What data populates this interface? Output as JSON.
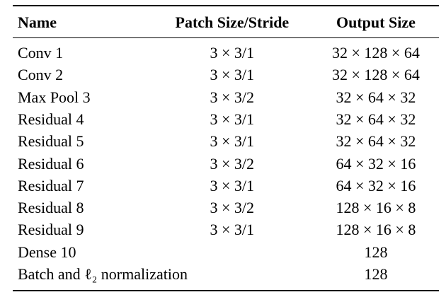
{
  "table": {
    "header": [
      "Name",
      "Patch Size/Stride",
      "Output Size"
    ],
    "rows": [
      [
        "Conv 1",
        "3 × 3/1",
        "32 × 128 × 64"
      ],
      [
        "Conv 2",
        "3 × 3/1",
        "32 × 128 × 64"
      ],
      [
        "Max Pool 3",
        "3 × 3/2",
        "32 × 64 × 32"
      ],
      [
        "Residual 4",
        "3 × 3/1",
        "32 × 64 × 32"
      ],
      [
        "Residual 5",
        "3 × 3/1",
        "32 × 64 × 32"
      ],
      [
        "Residual 6",
        "3 × 3/2",
        "64 × 32 × 16"
      ],
      [
        "Residual 7",
        "3 × 3/1",
        "64 × 32 × 16"
      ],
      [
        "Residual 8",
        "3 × 3/2",
        "128 × 16 × 8"
      ],
      [
        "Residual 9",
        "3 × 3/1",
        "128 × 16 × 8"
      ],
      [
        "Dense 10",
        null,
        "128"
      ],
      [
        "Batch and ℓ₂ normalization",
        null,
        "128"
      ]
    ]
  }
}
